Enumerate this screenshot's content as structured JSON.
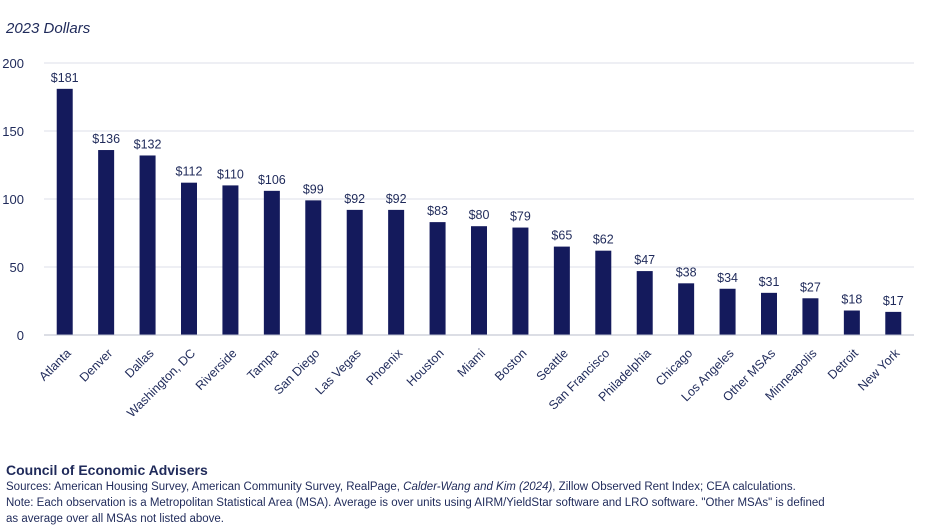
{
  "chart_data": {
    "type": "bar",
    "title": "",
    "unit_label": "2023 Dollars",
    "xlabel": "",
    "ylabel": "",
    "ylim": [
      0,
      200
    ],
    "yticks": [
      0,
      50,
      100,
      150,
      200
    ],
    "ytick_labels": [
      "0",
      "50",
      "100",
      "150",
      "200"
    ],
    "grid": true,
    "bar_color": "#141a5c",
    "categories": [
      "Atlanta",
      "Denver",
      "Dallas",
      "Washington, DC",
      "Riverside",
      "Tampa",
      "San Diego",
      "Las Vegas",
      "Phoenix",
      "Houston",
      "Miami",
      "Boston",
      "Seattle",
      "San Francisco",
      "Philadelphia",
      "Chicago",
      "Los Angeles",
      "Other MSAs",
      "Minneapolis",
      "Detroit",
      "New York"
    ],
    "values": [
      181,
      136,
      132,
      112,
      110,
      106,
      99,
      92,
      92,
      83,
      80,
      79,
      65,
      62,
      47,
      38,
      34,
      31,
      27,
      18,
      17
    ],
    "value_labels": [
      "$181",
      "$136",
      "$132",
      "$112",
      "$110",
      "$106",
      "$99",
      "$92",
      "$92",
      "$83",
      "$80",
      "$79",
      "$65",
      "$62",
      "$47",
      "$38",
      "$34",
      "$31",
      "$27",
      "$18",
      "$17"
    ]
  },
  "footer": {
    "organization": "Council of Economic Advisers",
    "sources_prefix": "Sources: American Housing Survey, American Community Survey, RealPage, ",
    "sources_italic": "Calder-Wang and Kim (2024)",
    "sources_suffix": ", Zillow Observed Rent Index; CEA calculations.",
    "note": "Note: Each observation is a Metropolitan Statistical Area (MSA). Average is over units using AIRM/YieldStar software and LRO software. \"Other MSAs\" is defined",
    "note_cont": "as average over all MSAs not listed above."
  }
}
